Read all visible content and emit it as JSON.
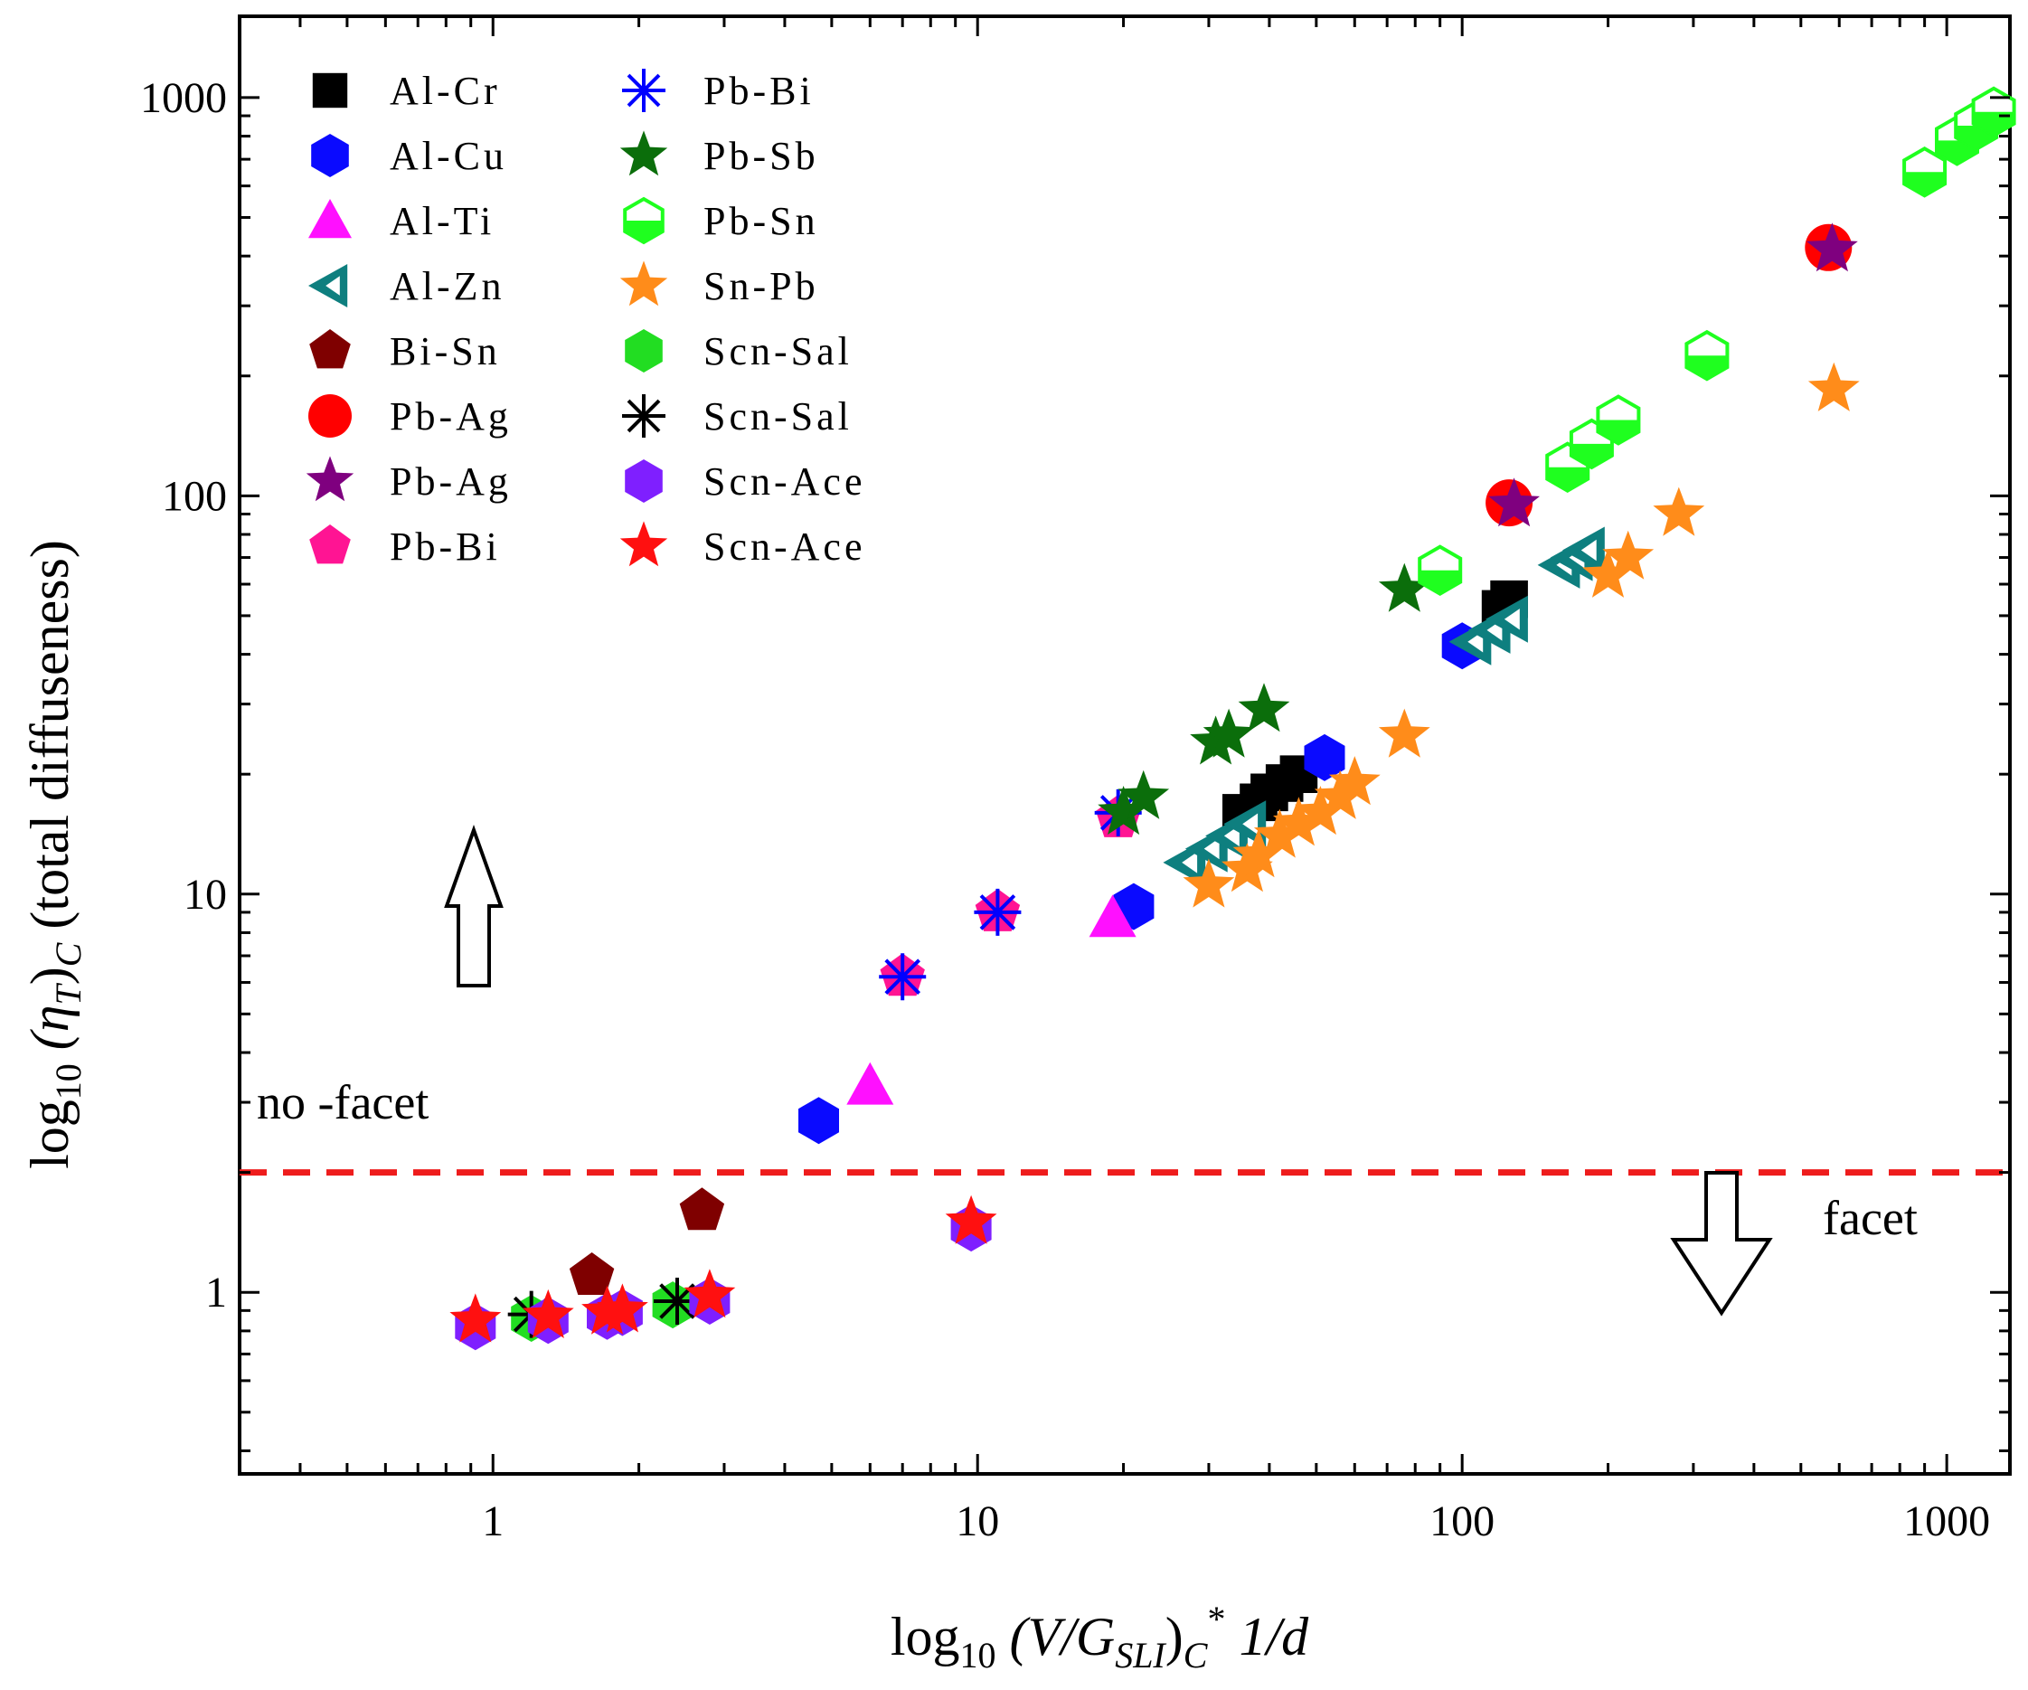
{
  "chart_data": {
    "type": "scatter",
    "x_scale": "log",
    "y_scale": "log",
    "xlim": [
      0.3,
      1350
    ],
    "ylim": [
      0.35,
      1600
    ],
    "xlabel": {
      "prefix": "log",
      "sub": "10",
      "mid": " (V/G",
      "sub2": "SLI",
      "suffix": ")",
      "sub3": "C",
      "sup": "*",
      "tail": " 1/d"
    },
    "ylabel": {
      "prefix": "log",
      "sub": "10",
      "mid": " (η",
      "sub2": "T",
      "suffix": ")",
      "sub3": "C",
      "tail": " (total diffuseness)"
    },
    "x_ticks": [
      {
        "value": 1,
        "label": "1"
      },
      {
        "value": 10,
        "label": "10"
      },
      {
        "value": 100,
        "label": "100"
      },
      {
        "value": 1000,
        "label": "1000"
      }
    ],
    "y_ticks": [
      {
        "value": 1,
        "label": "1"
      },
      {
        "value": 10,
        "label": "10"
      },
      {
        "value": 100,
        "label": "100"
      },
      {
        "value": 1000,
        "label": "1000"
      }
    ],
    "threshold": {
      "value": 2.0,
      "color": "#ee1c1c",
      "label_above": "no  -facet",
      "label_below": "facet"
    },
    "series": [
      {
        "name": "Al-Cr",
        "marker": "square",
        "color": "#000000",
        "x": [
          35,
          38,
          40,
          43,
          46,
          120,
          125
        ],
        "y": [
          16,
          17,
          18,
          19,
          20,
          52,
          55
        ]
      },
      {
        "name": "Al-Cu",
        "marker": "hexagon",
        "color": "#0a0aff",
        "x": [
          4.7,
          21,
          52,
          100
        ],
        "y": [
          2.7,
          9.3,
          22,
          42
        ]
      },
      {
        "name": "Al-Ti",
        "marker": "triangle",
        "color": "#ff10ff",
        "x": [
          6,
          19
        ],
        "y": [
          3.3,
          8.7
        ]
      },
      {
        "name": "Al-Zn",
        "marker": "tri-left",
        "color": "#0e7f7f",
        "x": [
          27,
          30,
          33,
          36,
          105,
          115,
          125,
          160,
          170,
          180
        ],
        "y": [
          12,
          13,
          14,
          15,
          43,
          46,
          49,
          67,
          70,
          73
        ]
      },
      {
        "name": "Bi-Sn",
        "marker": "pentagon",
        "color": "#7f0000",
        "x": [
          1.6,
          2.7
        ],
        "y": [
          1.1,
          1.6
        ]
      },
      {
        "name": "Pb-Ag",
        "marker": "circle",
        "color": "#ff0000",
        "x": [
          125,
          570
        ],
        "y": [
          96,
          420
        ]
      },
      {
        "name": "Pb-Ag",
        "marker": "star",
        "color": "#7f007f",
        "x": [
          128,
          580
        ],
        "y": [
          95,
          415
        ]
      },
      {
        "name": "Pb-Bi",
        "marker": "pentagon",
        "color": "#ff1493",
        "x": [
          7,
          11,
          19.5
        ],
        "y": [
          6.2,
          9,
          15.5
        ]
      },
      {
        "name": "Pb-Bi",
        "marker": "asterisk",
        "color": "#0000ff",
        "x": [
          7,
          11,
          19.5
        ],
        "y": [
          6.2,
          9,
          16
        ]
      },
      {
        "name": "Pb-Sb",
        "marker": "star",
        "color": "#0b6e0b",
        "x": [
          20,
          22,
          31,
          33,
          39,
          76
        ],
        "y": [
          16,
          17.5,
          24,
          25,
          29,
          58
        ]
      },
      {
        "name": "Pb-Sn",
        "marker": "half-hexagon",
        "color": "#1fff1f",
        "x": [
          90,
          165,
          185,
          210,
          320,
          900,
          1050,
          1150,
          1250
        ],
        "y": [
          65,
          118,
          135,
          155,
          225,
          650,
          780,
          850,
          920
        ]
      },
      {
        "name": "Sn-Pb",
        "marker": "star",
        "color": "#ff8c1a",
        "x": [
          30,
          36,
          38,
          42,
          46,
          51,
          56,
          60,
          76,
          200,
          220,
          280,
          585
        ],
        "y": [
          10.5,
          11.5,
          12.5,
          14,
          15,
          16,
          17.5,
          19,
          25,
          63,
          70,
          90,
          185
        ]
      },
      {
        "name": "Scn-Sal",
        "marker": "hexagon",
        "color": "#22dd22",
        "x": [
          1.2,
          2.35
        ],
        "y": [
          0.86,
          0.93
        ]
      },
      {
        "name": "Scn-Sal",
        "marker": "asterisk",
        "color": "#000000",
        "x": [
          1.2,
          2.4
        ],
        "y": [
          0.88,
          0.95
        ]
      },
      {
        "name": "Scn-Ace",
        "marker": "hexagon",
        "color": "#7f1fff",
        "x": [
          0.92,
          1.3,
          1.72,
          1.85,
          2.8,
          9.7
        ],
        "y": [
          0.82,
          0.85,
          0.87,
          0.89,
          0.95,
          1.45
        ]
      },
      {
        "name": "Scn-Ace",
        "marker": "star",
        "color": "#ff1010",
        "x": [
          0.92,
          1.3,
          1.72,
          1.85,
          2.8,
          9.7
        ],
        "y": [
          0.85,
          0.87,
          0.89,
          0.9,
          0.98,
          1.5
        ]
      }
    ],
    "legend": {
      "placement": "top-left",
      "columns": 2
    }
  }
}
